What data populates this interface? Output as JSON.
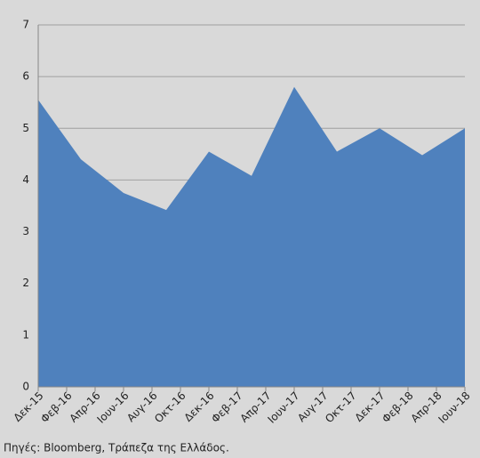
{
  "chart_data": {
    "type": "area",
    "x": [
      0,
      3,
      6,
      9,
      12,
      15,
      18,
      21,
      24,
      27,
      30
    ],
    "series": [
      {
        "color": "#4f81bd",
        "values": [
          5.55,
          4.4,
          3.75,
          3.42,
          4.55,
          4.08,
          5.8,
          4.55,
          5.0,
          4.48,
          5.0
        ]
      }
    ],
    "xlim": [
      0,
      30
    ],
    "xticks": [
      {
        "value": 0,
        "label": "Δεκ-15"
      },
      {
        "value": 2,
        "label": "Φεβ-16"
      },
      {
        "value": 4,
        "label": "Απρ-16"
      },
      {
        "value": 6,
        "label": "Ιουν-16"
      },
      {
        "value": 8,
        "label": "Αυγ-16"
      },
      {
        "value": 10,
        "label": "Οκτ-16"
      },
      {
        "value": 12,
        "label": "Δεκ-16"
      },
      {
        "value": 14,
        "label": "Φεβ-17"
      },
      {
        "value": 16,
        "label": "Απρ-17"
      },
      {
        "value": 18,
        "label": "Ιουν-17"
      },
      {
        "value": 20,
        "label": "Αυγ-17"
      },
      {
        "value": 22,
        "label": "Οκτ-17"
      },
      {
        "value": 24,
        "label": "Δεκ-17"
      },
      {
        "value": 26,
        "label": "Φεβ-18"
      },
      {
        "value": 28,
        "label": "Απρ-18"
      },
      {
        "value": 30,
        "label": "Ιουν-18"
      }
    ],
    "ylim": [
      0,
      7
    ],
    "yticks": [
      0,
      1,
      2,
      3,
      4,
      5,
      6,
      7
    ],
    "grid": true,
    "source": "Πηγές: Bloomberg, Τράπεζα της Ελλάδος."
  }
}
